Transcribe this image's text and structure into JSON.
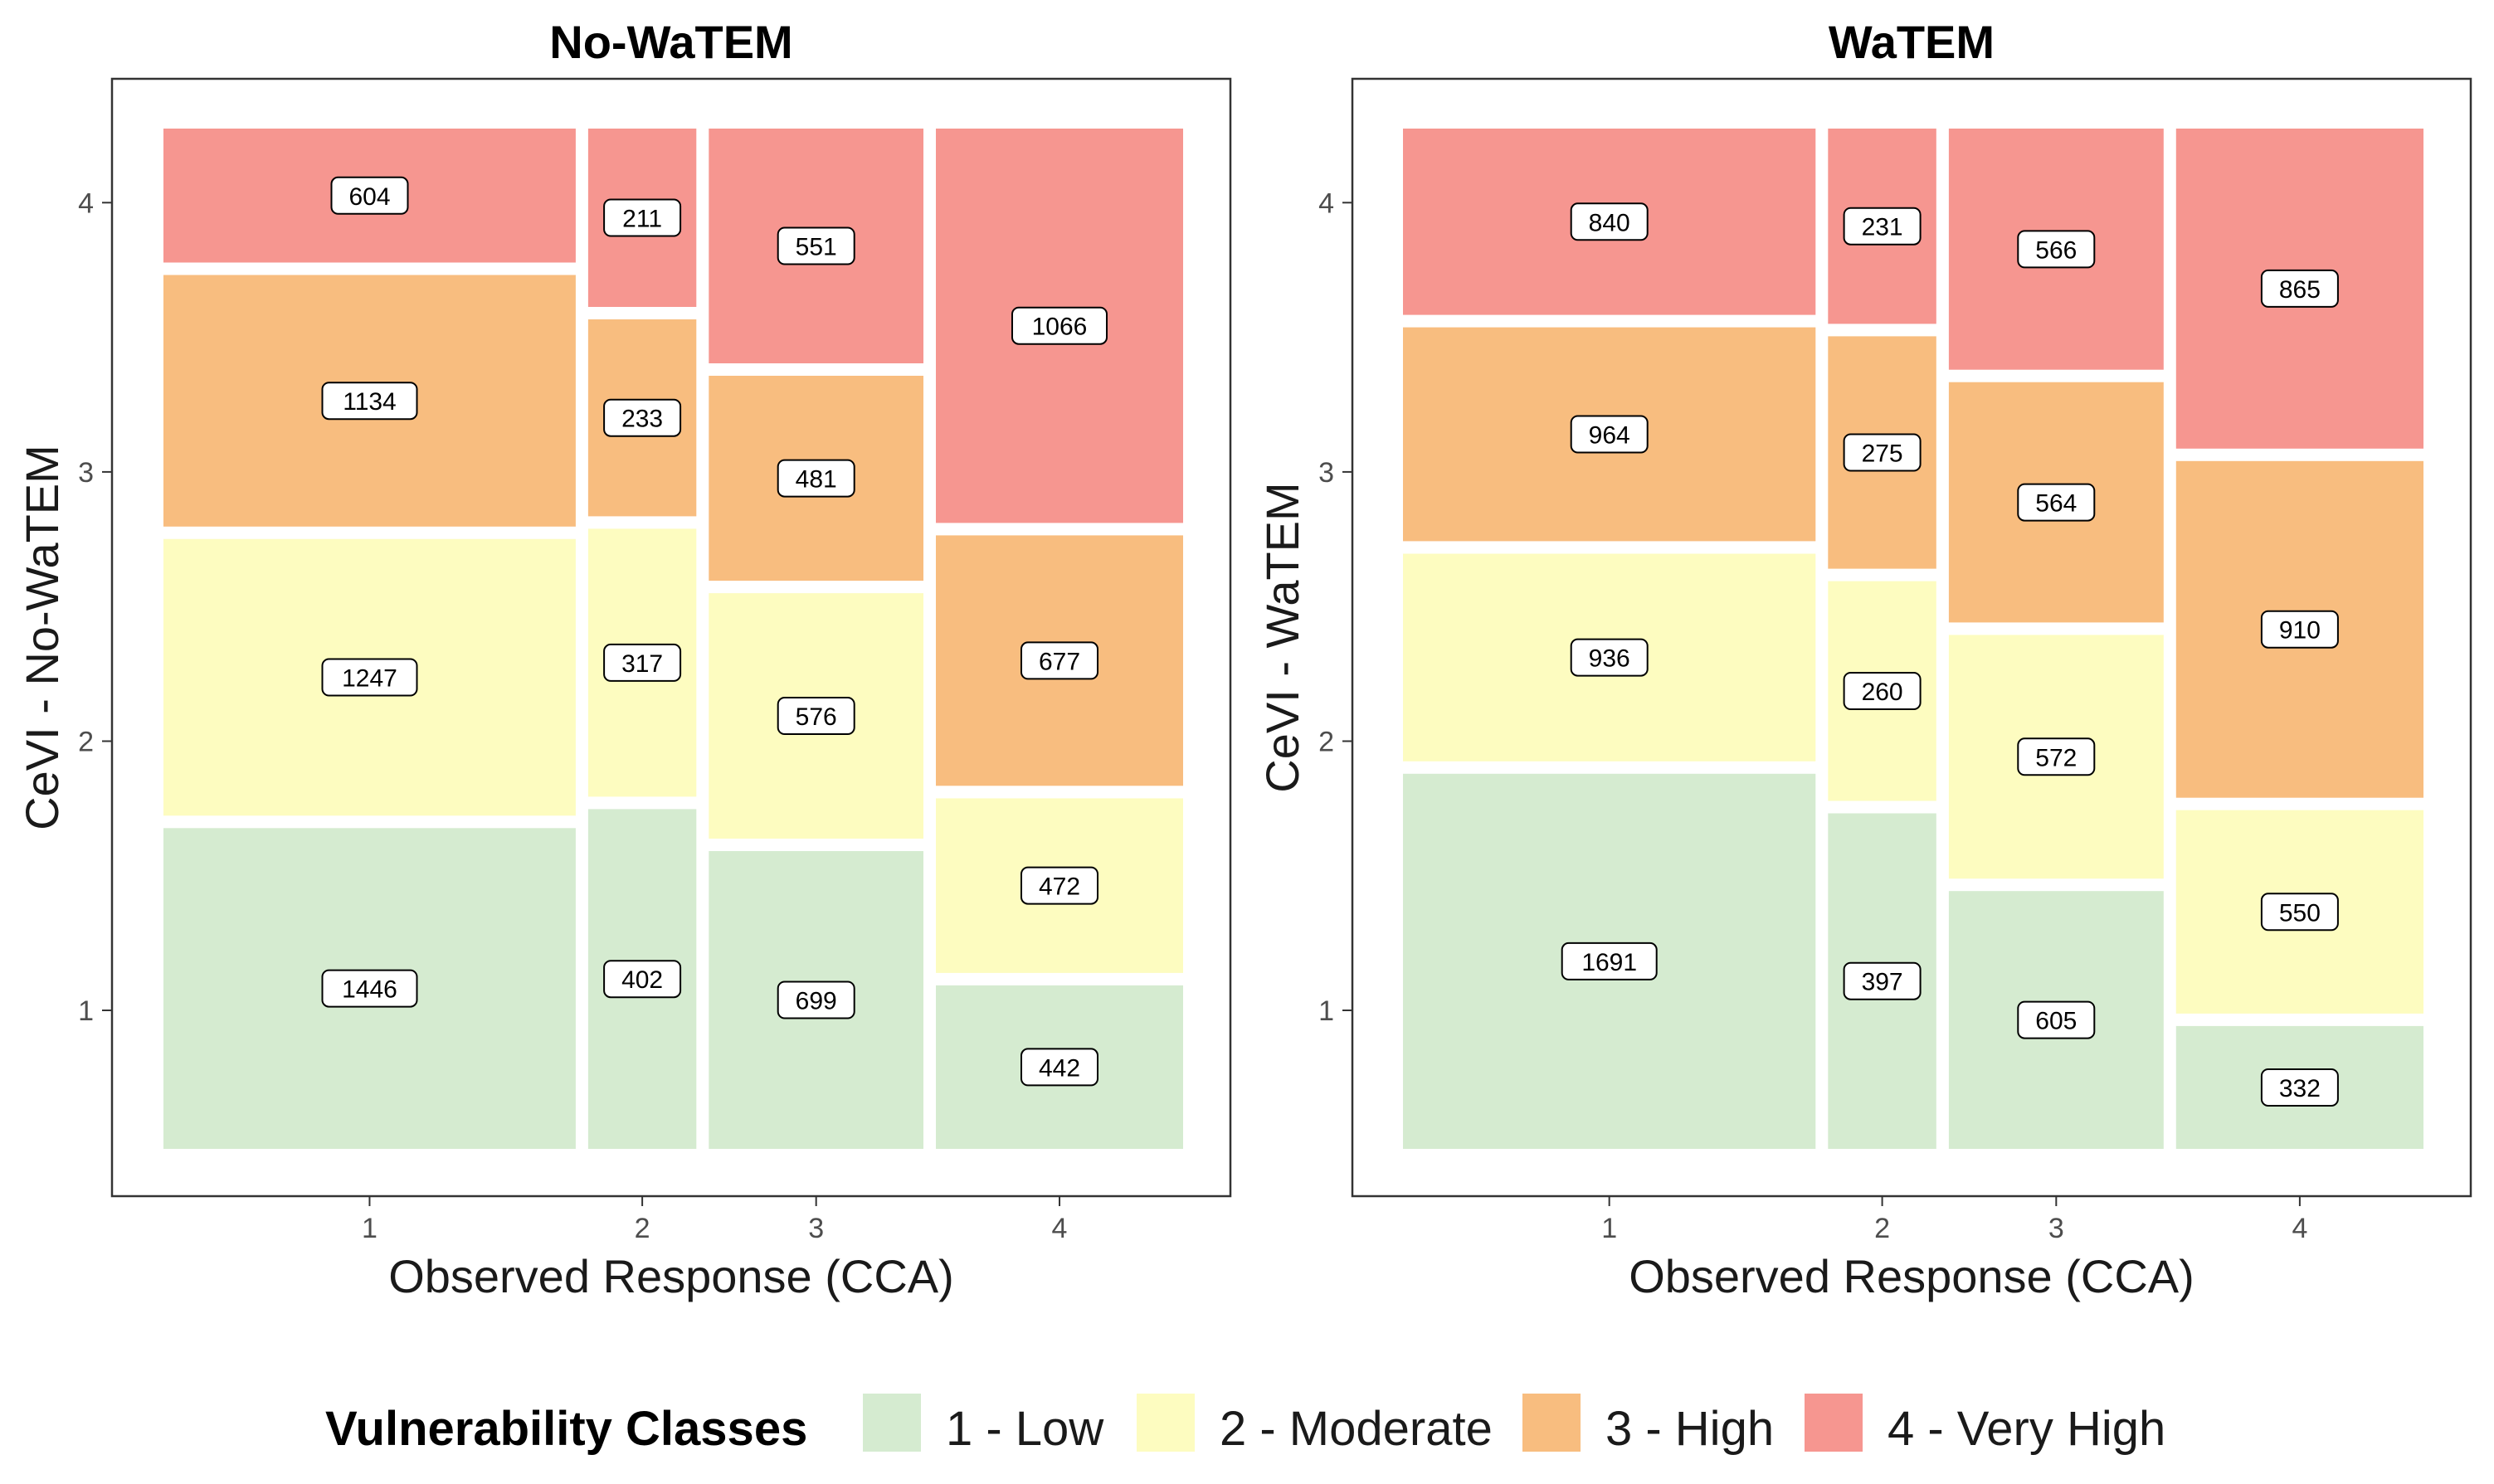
{
  "colors": {
    "class_1": "#d5ebd0",
    "class_2": "#fdfcc0",
    "class_3": "#f8bd7f",
    "class_4": "#f69690",
    "panel_border": "#333333",
    "label_border": "#000000"
  },
  "legend": {
    "title": "Vulnerability Classes",
    "items": [
      {
        "class": 1,
        "label": "1 - Low"
      },
      {
        "class": 2,
        "label": "2 - Moderate"
      },
      {
        "class": 3,
        "label": "3 - High"
      },
      {
        "class": 4,
        "label": "4 - Very High"
      }
    ]
  },
  "chart_data": [
    {
      "type": "mosaic",
      "title": "No-WaTEM",
      "xlabel": "Observed Response (CCA)",
      "ylabel": "CeVI - No-WaTEM",
      "x_categories": [
        "1",
        "2",
        "3",
        "4"
      ],
      "y_categories": [
        "1",
        "2",
        "3",
        "4"
      ],
      "counts": [
        [
          1446,
          1247,
          1134,
          604
        ],
        [
          402,
          317,
          233,
          211
        ],
        [
          699,
          576,
          481,
          551
        ],
        [
          442,
          472,
          677,
          1066
        ]
      ],
      "y_ticks": [
        "1",
        "2",
        "3",
        "4"
      ],
      "y_tick_values": [
        1,
        2,
        3,
        4
      ],
      "y_range": [
        0.31,
        4.46
      ]
    },
    {
      "type": "mosaic",
      "title": "WaTEM",
      "xlabel": "Observed Response (CCA)",
      "ylabel": "CeVI - WaTEM",
      "x_categories": [
        "1",
        "2",
        "3",
        "4"
      ],
      "y_categories": [
        "1",
        "2",
        "3",
        "4"
      ],
      "counts": [
        [
          1691,
          936,
          964,
          840
        ],
        [
          397,
          260,
          275,
          231
        ],
        [
          605,
          572,
          564,
          566
        ],
        [
          332,
          550,
          910,
          865
        ]
      ],
      "y_ticks": [
        "1",
        "2",
        "3",
        "4"
      ],
      "y_tick_values": [
        1,
        2,
        3,
        4
      ],
      "y_range": [
        0.31,
        4.46
      ]
    }
  ]
}
